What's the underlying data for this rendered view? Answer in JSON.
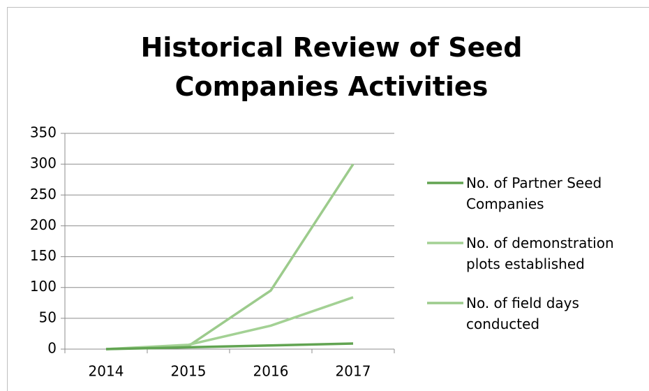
{
  "chart_data": {
    "type": "line",
    "title": "Historical Review of Seed Companies Activities",
    "categories": [
      "2014",
      "2015",
      "2016",
      "2017"
    ],
    "series": [
      {
        "name": "No. of Partner Seed Companies",
        "color": "#62a452",
        "values": [
          0,
          3,
          6,
          9
        ]
      },
      {
        "name": "No. of demonstration plots established",
        "color": "#a3d194",
        "values": [
          0,
          7,
          38,
          84
        ]
      },
      {
        "name": "No. of field days conducted",
        "color": "#9ccb8c",
        "values": [
          0,
          5,
          95,
          300
        ]
      }
    ],
    "ylim": [
      0,
      350
    ],
    "yticks": [
      0,
      50,
      100,
      150,
      200,
      250,
      300,
      350
    ],
    "grid": true,
    "legend": "right"
  }
}
